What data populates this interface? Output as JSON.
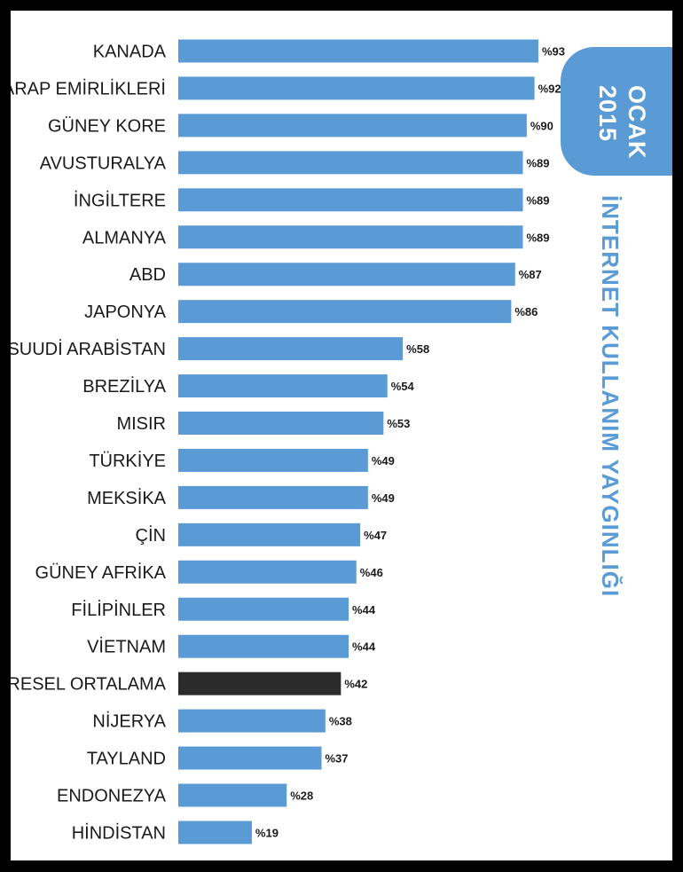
{
  "tab": {
    "month": "OCAK",
    "year": "2015"
  },
  "side_title": "İNTERNET KULLANIM YAYGINLIĞI",
  "colors": {
    "bar": "#5b9bd5",
    "highlight": "#2b2b2b",
    "accent": "#5b9bd5"
  },
  "chart_data": {
    "type": "bar",
    "orientation": "horizontal",
    "title": "İNTERNET KULLANIM YAYGINLIĞI",
    "subtitle": "OCAK 2015",
    "categories": [
      "KANADA",
      "B.ARAP EMİRLİKLERİ",
      "GÜNEY KORE",
      "AVUSTURALYA",
      "İNGİLTERE",
      "ALMANYA",
      "ABD",
      "JAPONYA",
      "SUUDİ ARABİSTAN",
      "BREZİLYA",
      "MISIR",
      "TÜRKİYE",
      "MEKSİKA",
      "ÇİN",
      "GÜNEY AFRİKA",
      "FİLİPİNLER",
      "VİETNAM",
      "KÜRESEL ORTALAMA",
      "NİJERYA",
      "TAYLAND",
      "ENDONEZYA",
      "HİNDİSTAN"
    ],
    "values": [
      93,
      92,
      90,
      89,
      89,
      89,
      87,
      86,
      58,
      54,
      53,
      49,
      49,
      47,
      46,
      44,
      44,
      42,
      38,
      37,
      28,
      19
    ],
    "value_labels": [
      "%93",
      "%92",
      "%90",
      "%89",
      "%89",
      "%89",
      "%87",
      "%86",
      "%58",
      "%54",
      "%53",
      "%49",
      "%49",
      "%47",
      "%46",
      "%44",
      "%44",
      "%42",
      "%38",
      "%37",
      "%28",
      "%19"
    ],
    "highlight_category": "KÜRESEL ORTALAMA",
    "xlim": [
      0,
      100
    ],
    "grid": false,
    "legend": "none"
  }
}
